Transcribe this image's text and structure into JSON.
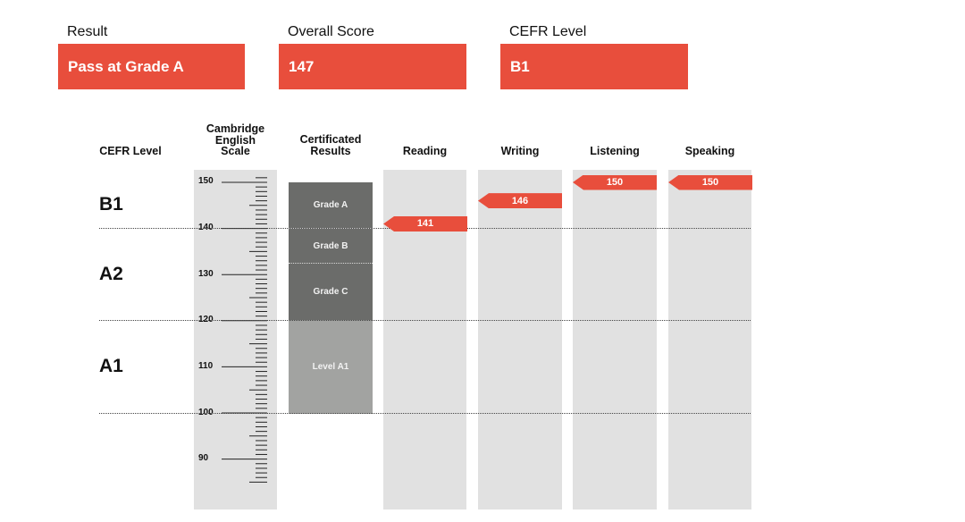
{
  "summary": {
    "result_label": "Result",
    "result_value": "Pass at Grade A",
    "score_label": "Overall Score",
    "score_value": "147",
    "cefr_label": "CEFR Level",
    "cefr_value": "B1"
  },
  "headers": {
    "cefr": "CEFR Level",
    "scale_l1": "Cambridge",
    "scale_l2": "English",
    "scale_l3": "Scale",
    "cert_l1": "Certificated",
    "cert_l2": "Results",
    "reading": "Reading",
    "writing": "Writing",
    "listening": "Listening",
    "speaking": "Speaking"
  },
  "cefr_levels": [
    "B1",
    "A2",
    "A1"
  ],
  "scale_ticks": [
    "150",
    "140",
    "130",
    "120",
    "110",
    "100",
    "90"
  ],
  "grades": {
    "a": "Grade A",
    "b": "Grade B",
    "c": "Grade C",
    "a1": "Level A1"
  },
  "colors": {
    "accent": "#e84e3c",
    "column_bg": "#e1e1e1",
    "grade_dark": "#6b6c6a",
    "grade_light": "#a2a3a1"
  },
  "chart_data": {
    "type": "bar",
    "categories": [
      "Reading",
      "Writing",
      "Listening",
      "Speaking"
    ],
    "values": [
      141,
      146,
      150,
      150
    ],
    "ylim": [
      85,
      152
    ],
    "xlabel": "",
    "ylabel": "Cambridge English Scale"
  }
}
